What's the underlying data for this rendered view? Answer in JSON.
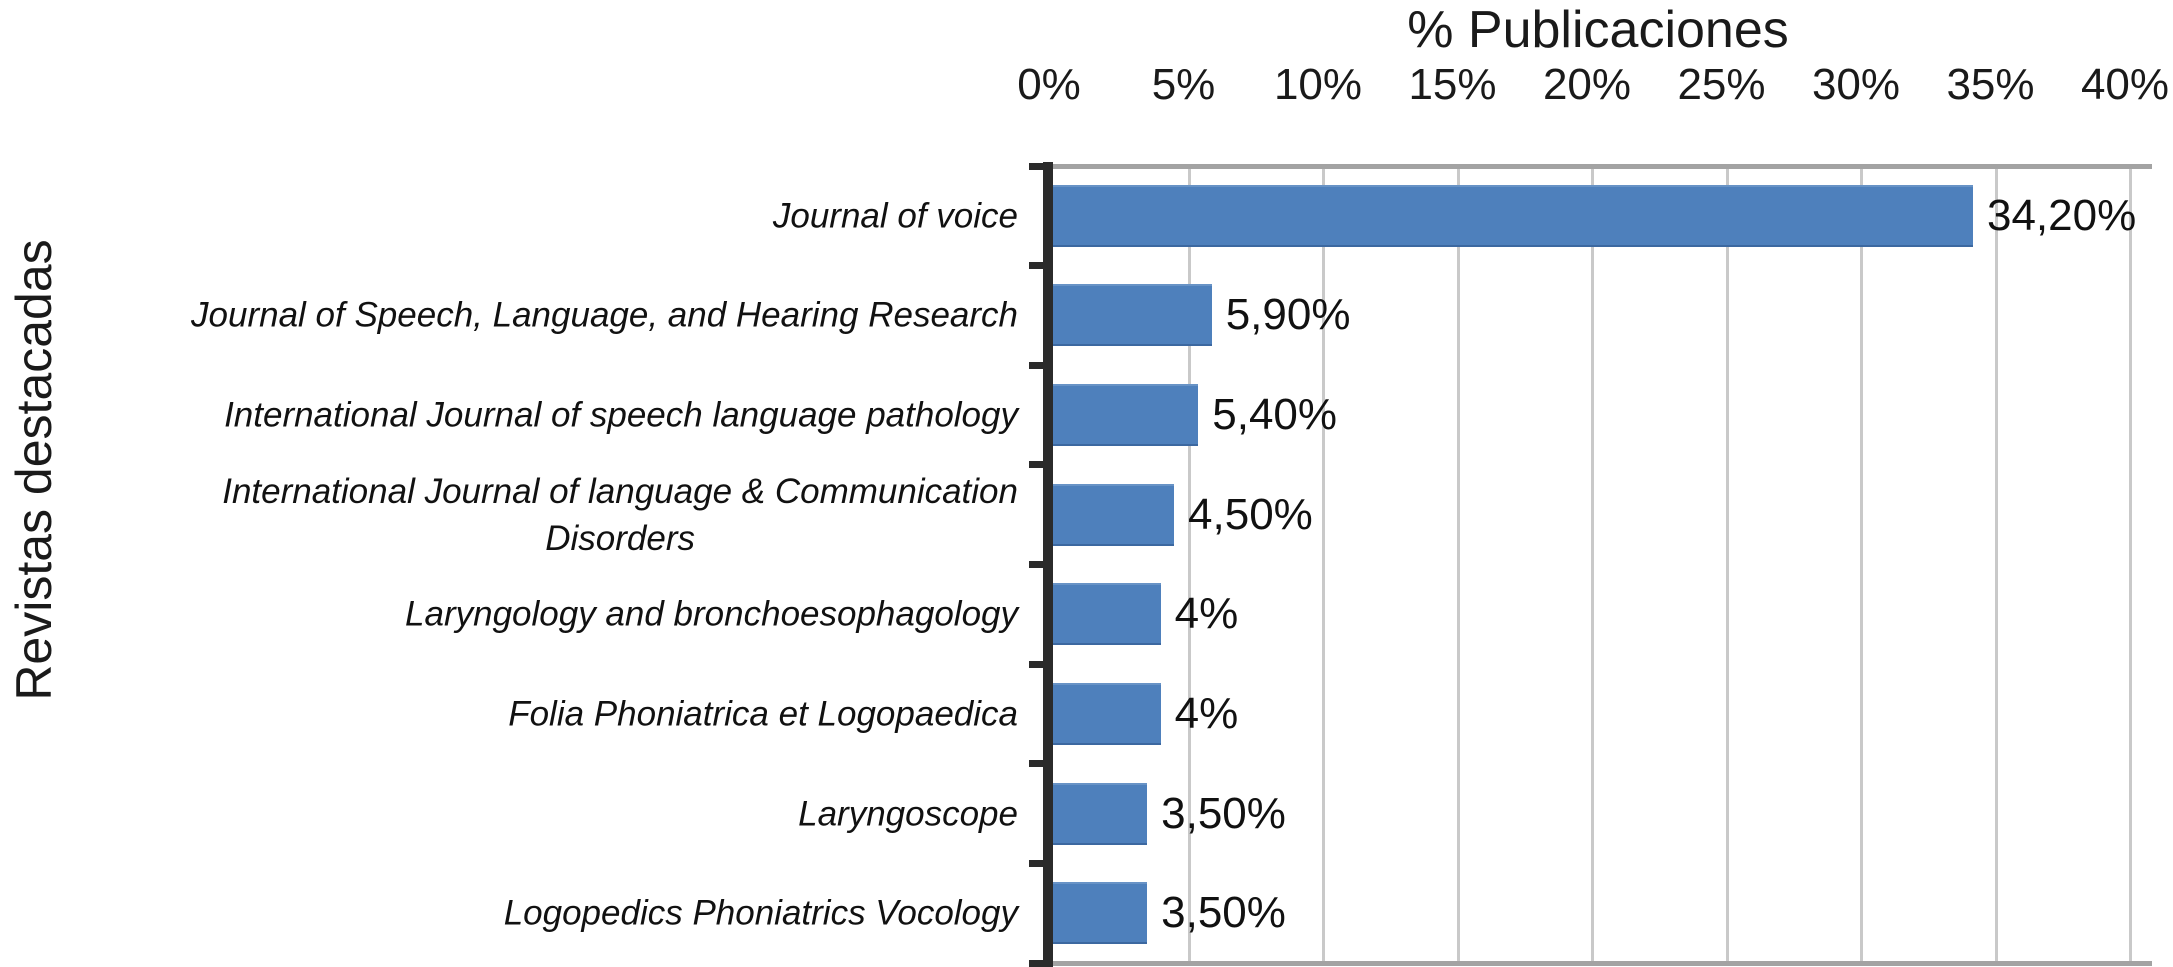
{
  "chart_data": {
    "type": "bar",
    "orientation": "horizontal",
    "title": "% Publicaciones",
    "ylabel": "Revistas destacadas",
    "xlabel": "",
    "xlim": [
      0,
      40
    ],
    "grid": true,
    "legend": false,
    "bar_color": "#4e80bc",
    "xticks": [
      {
        "value": 0,
        "label": "0%"
      },
      {
        "value": 5,
        "label": "5%"
      },
      {
        "value": 10,
        "label": "10%"
      },
      {
        "value": 15,
        "label": "15%"
      },
      {
        "value": 20,
        "label": "20%"
      },
      {
        "value": 25,
        "label": "25%"
      },
      {
        "value": 30,
        "label": "30%"
      },
      {
        "value": 35,
        "label": "35%"
      },
      {
        "value": 40,
        "label": "40%"
      }
    ],
    "categories": [
      "Journal of voice",
      "Journal of Speech, Language, and Hearing Research",
      "International Journal of speech language pathology",
      "International Journal of language & Communication\nDisorders",
      "Laryngology and bronchoesophagology",
      "Folia Phoniatrica et Logopaedica",
      "Laryngoscope",
      "Logopedics Phoniatrics Vocology"
    ],
    "values": [
      34.2,
      5.9,
      5.4,
      4.5,
      4,
      4,
      3.5,
      3.5
    ],
    "value_labels": [
      "34,20%",
      "5,90%",
      "5,40%",
      "4,50%",
      "4%",
      "4%",
      "3,50%",
      "3,50%"
    ]
  }
}
